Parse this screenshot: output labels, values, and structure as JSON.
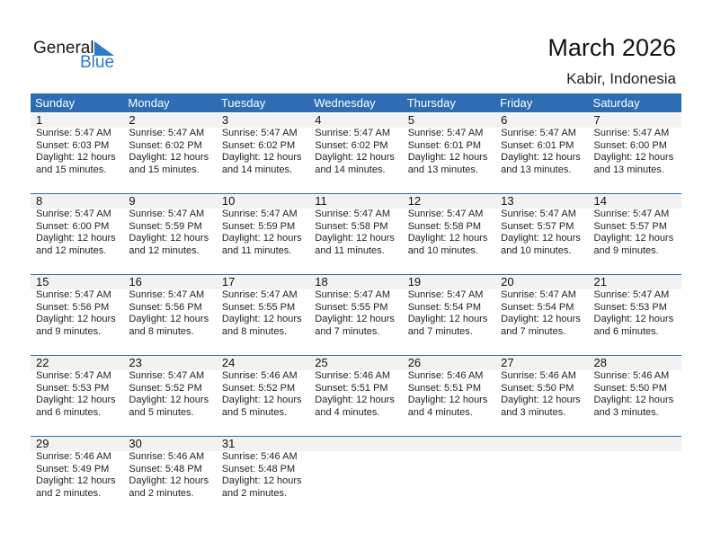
{
  "logo": {
    "line1": "General",
    "line2": "Blue"
  },
  "title": "March 2026",
  "location": "Kabir, Indonesia",
  "weekdays": [
    "Sunday",
    "Monday",
    "Tuesday",
    "Wednesday",
    "Thursday",
    "Friday",
    "Saturday"
  ],
  "weeks": [
    [
      {
        "day": "1",
        "sunrise": "Sunrise: 5:47 AM",
        "sunset": "Sunset: 6:03 PM",
        "d1": "Daylight: 12 hours",
        "d2": "and 15 minutes."
      },
      {
        "day": "2",
        "sunrise": "Sunrise: 5:47 AM",
        "sunset": "Sunset: 6:02 PM",
        "d1": "Daylight: 12 hours",
        "d2": "and 15 minutes."
      },
      {
        "day": "3",
        "sunrise": "Sunrise: 5:47 AM",
        "sunset": "Sunset: 6:02 PM",
        "d1": "Daylight: 12 hours",
        "d2": "and 14 minutes."
      },
      {
        "day": "4",
        "sunrise": "Sunrise: 5:47 AM",
        "sunset": "Sunset: 6:02 PM",
        "d1": "Daylight: 12 hours",
        "d2": "and 14 minutes."
      },
      {
        "day": "5",
        "sunrise": "Sunrise: 5:47 AM",
        "sunset": "Sunset: 6:01 PM",
        "d1": "Daylight: 12 hours",
        "d2": "and 13 minutes."
      },
      {
        "day": "6",
        "sunrise": "Sunrise: 5:47 AM",
        "sunset": "Sunset: 6:01 PM",
        "d1": "Daylight: 12 hours",
        "d2": "and 13 minutes."
      },
      {
        "day": "7",
        "sunrise": "Sunrise: 5:47 AM",
        "sunset": "Sunset: 6:00 PM",
        "d1": "Daylight: 12 hours",
        "d2": "and 13 minutes."
      }
    ],
    [
      {
        "day": "8",
        "sunrise": "Sunrise: 5:47 AM",
        "sunset": "Sunset: 6:00 PM",
        "d1": "Daylight: 12 hours",
        "d2": "and 12 minutes."
      },
      {
        "day": "9",
        "sunrise": "Sunrise: 5:47 AM",
        "sunset": "Sunset: 5:59 PM",
        "d1": "Daylight: 12 hours",
        "d2": "and 12 minutes."
      },
      {
        "day": "10",
        "sunrise": "Sunrise: 5:47 AM",
        "sunset": "Sunset: 5:59 PM",
        "d1": "Daylight: 12 hours",
        "d2": "and 11 minutes."
      },
      {
        "day": "11",
        "sunrise": "Sunrise: 5:47 AM",
        "sunset": "Sunset: 5:58 PM",
        "d1": "Daylight: 12 hours",
        "d2": "and 11 minutes."
      },
      {
        "day": "12",
        "sunrise": "Sunrise: 5:47 AM",
        "sunset": "Sunset: 5:58 PM",
        "d1": "Daylight: 12 hours",
        "d2": "and 10 minutes."
      },
      {
        "day": "13",
        "sunrise": "Sunrise: 5:47 AM",
        "sunset": "Sunset: 5:57 PM",
        "d1": "Daylight: 12 hours",
        "d2": "and 10 minutes."
      },
      {
        "day": "14",
        "sunrise": "Sunrise: 5:47 AM",
        "sunset": "Sunset: 5:57 PM",
        "d1": "Daylight: 12 hours",
        "d2": "and 9 minutes."
      }
    ],
    [
      {
        "day": "15",
        "sunrise": "Sunrise: 5:47 AM",
        "sunset": "Sunset: 5:56 PM",
        "d1": "Daylight: 12 hours",
        "d2": "and 9 minutes."
      },
      {
        "day": "16",
        "sunrise": "Sunrise: 5:47 AM",
        "sunset": "Sunset: 5:56 PM",
        "d1": "Daylight: 12 hours",
        "d2": "and 8 minutes."
      },
      {
        "day": "17",
        "sunrise": "Sunrise: 5:47 AM",
        "sunset": "Sunset: 5:55 PM",
        "d1": "Daylight: 12 hours",
        "d2": "and 8 minutes."
      },
      {
        "day": "18",
        "sunrise": "Sunrise: 5:47 AM",
        "sunset": "Sunset: 5:55 PM",
        "d1": "Daylight: 12 hours",
        "d2": "and 7 minutes."
      },
      {
        "day": "19",
        "sunrise": "Sunrise: 5:47 AM",
        "sunset": "Sunset: 5:54 PM",
        "d1": "Daylight: 12 hours",
        "d2": "and 7 minutes."
      },
      {
        "day": "20",
        "sunrise": "Sunrise: 5:47 AM",
        "sunset": "Sunset: 5:54 PM",
        "d1": "Daylight: 12 hours",
        "d2": "and 7 minutes."
      },
      {
        "day": "21",
        "sunrise": "Sunrise: 5:47 AM",
        "sunset": "Sunset: 5:53 PM",
        "d1": "Daylight: 12 hours",
        "d2": "and 6 minutes."
      }
    ],
    [
      {
        "day": "22",
        "sunrise": "Sunrise: 5:47 AM",
        "sunset": "Sunset: 5:53 PM",
        "d1": "Daylight: 12 hours",
        "d2": "and 6 minutes."
      },
      {
        "day": "23",
        "sunrise": "Sunrise: 5:47 AM",
        "sunset": "Sunset: 5:52 PM",
        "d1": "Daylight: 12 hours",
        "d2": "and 5 minutes."
      },
      {
        "day": "24",
        "sunrise": "Sunrise: 5:46 AM",
        "sunset": "Sunset: 5:52 PM",
        "d1": "Daylight: 12 hours",
        "d2": "and 5 minutes."
      },
      {
        "day": "25",
        "sunrise": "Sunrise: 5:46 AM",
        "sunset": "Sunset: 5:51 PM",
        "d1": "Daylight: 12 hours",
        "d2": "and 4 minutes."
      },
      {
        "day": "26",
        "sunrise": "Sunrise: 5:46 AM",
        "sunset": "Sunset: 5:51 PM",
        "d1": "Daylight: 12 hours",
        "d2": "and 4 minutes."
      },
      {
        "day": "27",
        "sunrise": "Sunrise: 5:46 AM",
        "sunset": "Sunset: 5:50 PM",
        "d1": "Daylight: 12 hours",
        "d2": "and 3 minutes."
      },
      {
        "day": "28",
        "sunrise": "Sunrise: 5:46 AM",
        "sunset": "Sunset: 5:50 PM",
        "d1": "Daylight: 12 hours",
        "d2": "and 3 minutes."
      }
    ],
    [
      {
        "day": "29",
        "sunrise": "Sunrise: 5:46 AM",
        "sunset": "Sunset: 5:49 PM",
        "d1": "Daylight: 12 hours",
        "d2": "and 2 minutes."
      },
      {
        "day": "30",
        "sunrise": "Sunrise: 5:46 AM",
        "sunset": "Sunset: 5:48 PM",
        "d1": "Daylight: 12 hours",
        "d2": "and 2 minutes."
      },
      {
        "day": "31",
        "sunrise": "Sunrise: 5:46 AM",
        "sunset": "Sunset: 5:48 PM",
        "d1": "Daylight: 12 hours",
        "d2": "and 2 minutes."
      },
      null,
      null,
      null,
      null
    ]
  ],
  "colors": {
    "accent": "#2e6db4",
    "date_band": "#f2f2f2"
  }
}
